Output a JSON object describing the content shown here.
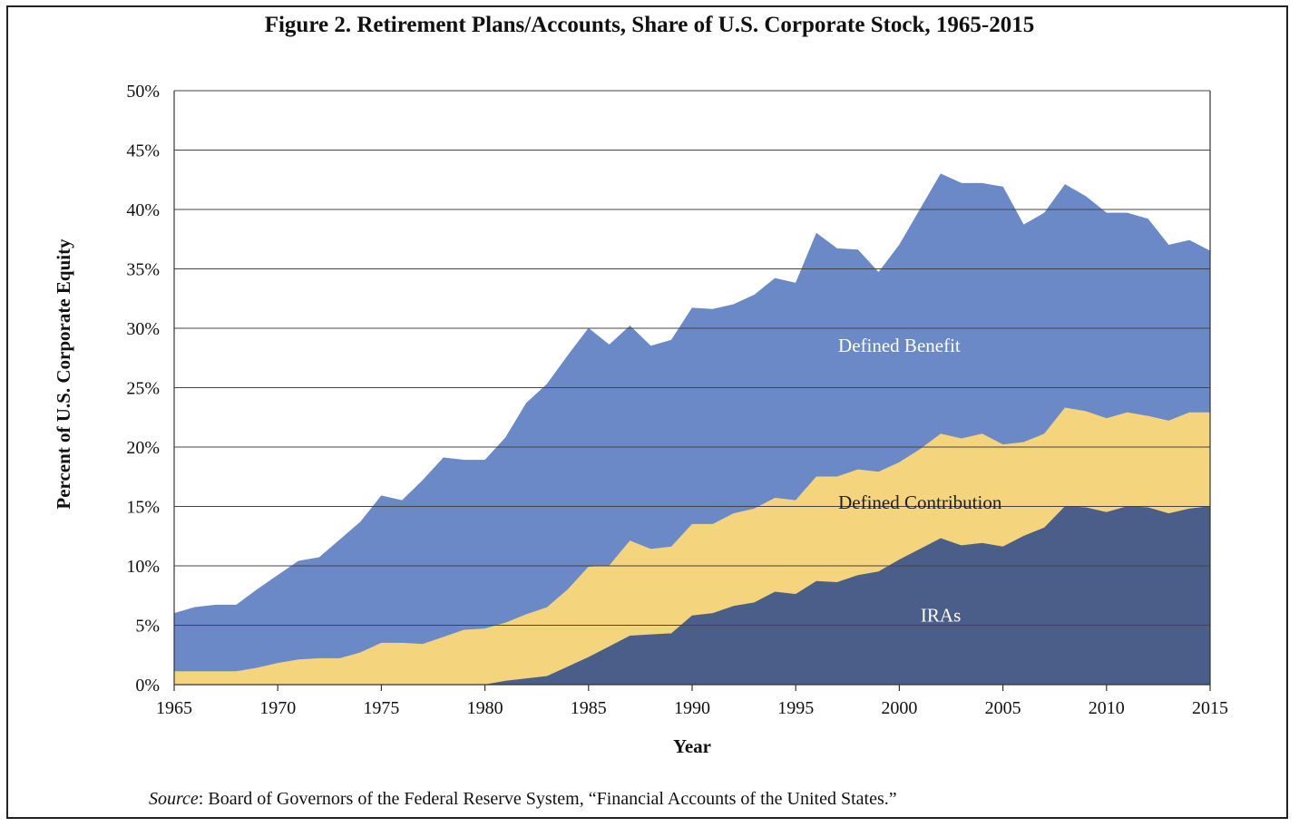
{
  "chart_data": {
    "type": "area",
    "stacked": true,
    "title": "Figure 2. Retirement Plans/Accounts, Share of U.S. Corporate Stock, 1965-2015",
    "xlabel": "Year",
    "ylabel": "Percent of U.S. Corporate Equity",
    "xlim": [
      1965,
      2015
    ],
    "ylim": [
      0,
      50
    ],
    "x_ticks": [
      "1965",
      "1970",
      "1975",
      "1980",
      "1985",
      "1990",
      "1995",
      "2000",
      "2005",
      "2010",
      "2015"
    ],
    "y_ticks": [
      "0%",
      "5%",
      "10%",
      "15%",
      "20%",
      "25%",
      "30%",
      "35%",
      "40%",
      "45%",
      "50%"
    ],
    "grid": "horizontal",
    "x": [
      1965,
      1966,
      1967,
      1968,
      1969,
      1970,
      1971,
      1972,
      1973,
      1974,
      1975,
      1976,
      1977,
      1978,
      1979,
      1980,
      1981,
      1982,
      1983,
      1984,
      1985,
      1986,
      1987,
      1988,
      1989,
      1990,
      1991,
      1992,
      1993,
      1994,
      1995,
      1996,
      1997,
      1998,
      1999,
      2000,
      2001,
      2002,
      2003,
      2004,
      2005,
      2006,
      2007,
      2008,
      2009,
      2010,
      2011,
      2012,
      2013,
      2014,
      2015
    ],
    "series": [
      {
        "name": "IRAs",
        "color": "#4a5e89",
        "values": [
          0,
          0,
          0,
          0,
          0,
          0,
          0,
          0,
          0,
          0,
          0,
          0,
          0,
          0,
          0,
          0,
          0.3,
          0.5,
          0.7,
          1.5,
          2.3,
          3.2,
          4.1,
          4.2,
          4.3,
          5.8,
          6.0,
          6.6,
          6.9,
          7.8,
          7.6,
          8.7,
          8.6,
          9.2,
          9.5,
          10.5,
          11.4,
          12.3,
          11.7,
          11.9,
          11.6,
          12.5,
          13.2,
          15.0,
          14.9,
          14.5,
          15.0,
          14.9,
          14.4,
          14.8,
          15.0
        ]
      },
      {
        "name": "Defined Contribution",
        "color": "#f4d57e",
        "values": [
          1.1,
          1.1,
          1.1,
          1.1,
          1.4,
          1.8,
          2.1,
          2.2,
          2.2,
          2.7,
          3.5,
          3.5,
          3.4,
          4.0,
          4.6,
          4.7,
          4.9,
          5.4,
          5.8,
          6.5,
          7.6,
          6.8,
          8.0,
          7.2,
          7.3,
          7.7,
          7.5,
          7.8,
          7.9,
          7.9,
          7.9,
          8.8,
          8.9,
          8.9,
          8.4,
          8.2,
          8.4,
          8.8,
          9.0,
          9.2,
          8.6,
          7.9,
          7.9,
          8.3,
          8.1,
          7.9,
          7.9,
          7.7,
          7.8,
          8.1,
          7.9
        ]
      },
      {
        "name": "Defined Benefit",
        "color": "#6b89c6",
        "values": [
          4.9,
          5.4,
          5.6,
          5.6,
          6.6,
          7.4,
          8.3,
          8.5,
          10.0,
          11.0,
          12.4,
          12.0,
          13.8,
          15.1,
          14.3,
          14.2,
          15.6,
          17.8,
          18.8,
          19.7,
          20.1,
          18.6,
          18.1,
          17.1,
          17.4,
          18.2,
          18.1,
          17.6,
          18.0,
          18.5,
          18.3,
          20.5,
          19.2,
          18.5,
          16.8,
          18.3,
          20.2,
          21.9,
          21.5,
          21.1,
          21.7,
          18.3,
          18.6,
          18.8,
          18.1,
          17.3,
          16.8,
          16.6,
          14.8,
          14.5,
          13.6
        ]
      }
    ],
    "annotations": [
      {
        "text": "Defined Benefit",
        "x": 2000,
        "y": 28
      },
      {
        "text": "Defined Contribution",
        "x": 2001,
        "y": 14.8
      },
      {
        "text": "IRAs",
        "x": 2002,
        "y": 5.3
      }
    ]
  },
  "source": {
    "label": "Source",
    "text": ": Board of Governors of the Federal Reserve System, “Financial Accounts of the United States.”"
  }
}
